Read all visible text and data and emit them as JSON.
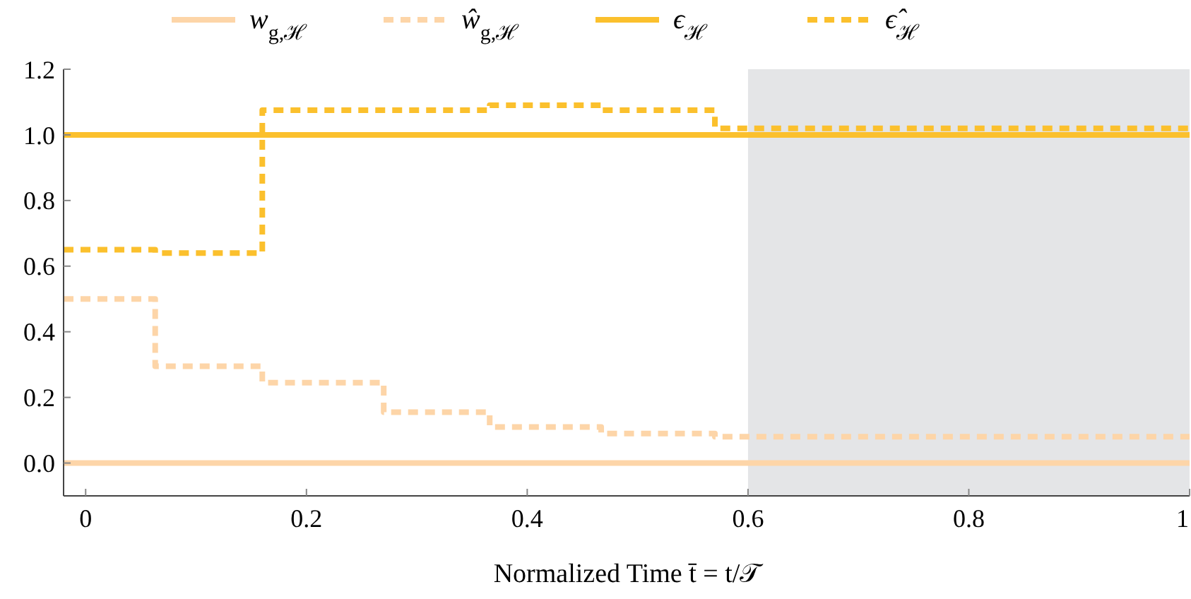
{
  "chart_data": {
    "type": "step",
    "xlabel": "Normalized Time t̄ = t/𝒯",
    "legend": "top",
    "series": [
      {
        "name": "w$_{g,ℋ}$",
        "color": "#fdd5a8",
        "line_style": "solid",
        "x": [
          -0.02,
          1
        ],
        "values": [
          0,
          0
        ]
      },
      {
        "name": "ŵ$_{g,ℋ}$",
        "color": "#fdd5a8",
        "line_style": "dashed",
        "x": [
          -0.02,
          0.063,
          0.16,
          0.27,
          0.366,
          0.467,
          0.57,
          1
        ],
        "values": [
          0.5,
          0.295,
          0.245,
          0.155,
          0.11,
          0.09,
          0.08,
          0.08
        ]
      },
      {
        "name": "ϵ$_{ℋ}$",
        "color": "#fbc02d",
        "line_style": "solid",
        "x": [
          -0.02,
          1
        ],
        "values": [
          1,
          1
        ]
      },
      {
        "name": "ϵ̂$_{ℋ}$",
        "color": "#fbc02d",
        "line_style": "dashed",
        "x": [
          -0.02,
          0.063,
          0.16,
          0.366,
          0.467,
          0.57,
          1
        ],
        "values": [
          0.65,
          0.64,
          1.075,
          1.09,
          1.075,
          1.02,
          1.02
        ]
      }
    ],
    "bands": [
      {
        "axis": "x",
        "from": 0.6,
        "to": 1,
        "color": "#e4e5e7"
      }
    ],
    "xlim": [
      -0.02,
      1
    ],
    "xticks": [
      0,
      0.2,
      0.4,
      0.6,
      0.8,
      1
    ],
    "ylim": [
      -0.1,
      1.2
    ],
    "yticks": [
      {
        "value": 0,
        "label": "0.0"
      },
      0.2,
      0.4,
      0.6,
      0.8,
      {
        "value": 1,
        "label": "1.0"
      },
      1.2
    ],
    "grid": false
  }
}
